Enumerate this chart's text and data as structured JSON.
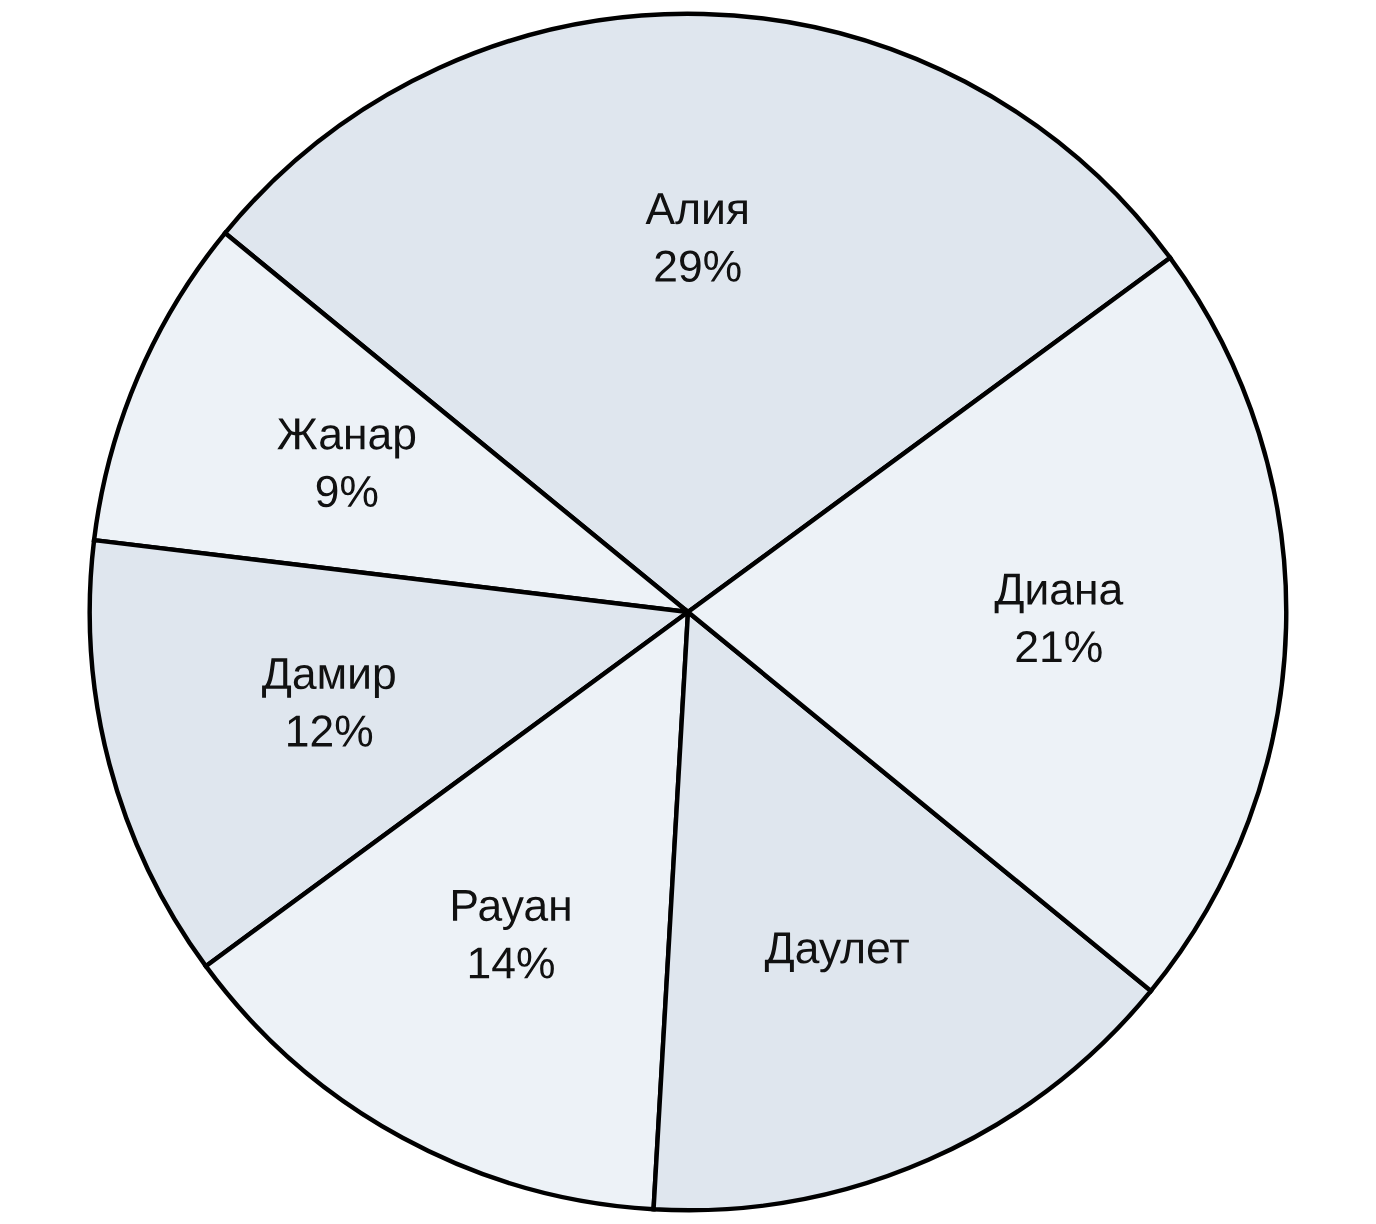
{
  "chart_data": {
    "type": "pie",
    "categories": [
      "Алия",
      "Жанар",
      "Дамир",
      "Рауан",
      "Даулет",
      "Диана"
    ],
    "values": [
      29,
      9,
      12,
      14,
      15,
      21
    ],
    "value_labels": [
      "29%",
      "9%",
      "12%",
      "14%",
      null,
      "21%"
    ],
    "colors": [
      "#dfe6ee",
      "#edf2f7",
      "#dfe6ee",
      "#edf2f7",
      "#dfe6ee",
      "#edf2f7"
    ]
  }
}
